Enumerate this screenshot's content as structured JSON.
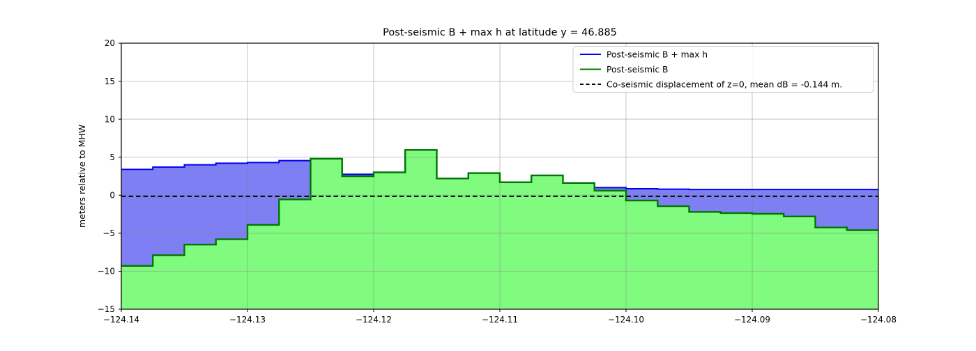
{
  "figure": {
    "background": "#ffffff"
  },
  "chart_data": {
    "type": "area",
    "title": "Post-seismic B + max h at latitude y = 46.885",
    "xlabel": "",
    "ylabel": "meters relative to MHW",
    "xlim": [
      -124.14,
      -124.08
    ],
    "ylim": [
      -15,
      20
    ],
    "grid": true,
    "legend_position": "upper right",
    "step_start_x": -124.14,
    "step_width": 0.0025,
    "xticks": [
      {
        "value": -124.14,
        "label": "−124.14"
      },
      {
        "value": -124.13,
        "label": "−124.13"
      },
      {
        "value": -124.12,
        "label": "−124.12"
      },
      {
        "value": -124.11,
        "label": "−124.11"
      },
      {
        "value": -124.1,
        "label": "−124.10"
      },
      {
        "value": -124.09,
        "label": "−124.09"
      },
      {
        "value": -124.08,
        "label": "−124.08"
      }
    ],
    "yticks": [
      {
        "value": -15,
        "label": "−15"
      },
      {
        "value": -10,
        "label": "−10"
      },
      {
        "value": -5,
        "label": "−5"
      },
      {
        "value": 0,
        "label": "0"
      },
      {
        "value": 5,
        "label": "5"
      },
      {
        "value": 10,
        "label": "10"
      },
      {
        "value": 15,
        "label": "15"
      },
      {
        "value": 20,
        "label": "20"
      }
    ],
    "series": [
      {
        "name": "Post-seismic B + max h",
        "kind": "step-area",
        "line_color": "#0000ee",
        "fill_color": "#7f7ff4",
        "values": [
          3.4,
          3.7,
          4.0,
          4.2,
          4.3,
          4.55,
          4.8,
          2.75,
          3.0,
          5.95,
          2.2,
          2.9,
          1.7,
          2.6,
          1.6,
          1.0,
          0.85,
          0.8,
          0.75,
          0.75,
          0.75,
          0.75,
          0.75,
          0.75
        ]
      },
      {
        "name": "Post-seismic B",
        "kind": "step-area",
        "line_color": "#007700",
        "fill_color": "#80fb80",
        "values": [
          -9.3,
          -7.9,
          -6.5,
          -5.8,
          -3.9,
          -0.55,
          4.8,
          2.5,
          3.0,
          5.95,
          2.2,
          2.9,
          1.7,
          2.6,
          1.6,
          0.6,
          -0.7,
          -1.45,
          -2.2,
          -2.35,
          -2.45,
          -2.8,
          -4.25,
          -4.6
        ]
      },
      {
        "name": "Co-seismic displacement of z=0, mean dB = -0.144 m.",
        "kind": "hline",
        "line_color": "#000000",
        "dashed": true,
        "y": -0.144
      }
    ],
    "colors": {
      "grid": "#808080",
      "spine": "#000000",
      "legend_border": "#cccccc",
      "legend_background": "#ffffff"
    }
  }
}
